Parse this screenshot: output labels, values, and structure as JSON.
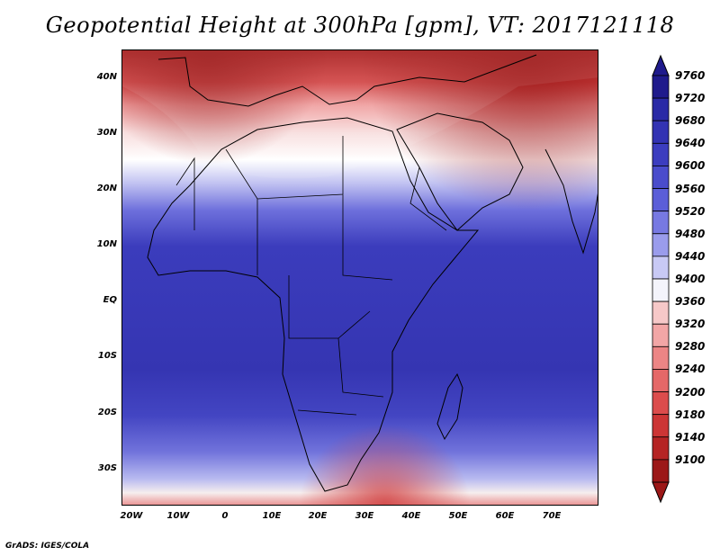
{
  "title": "Geopotential Height at 300hPa [gpm], VT: 2017121118",
  "y_axis_labels": [
    "40N",
    "30N",
    "20N",
    "10N",
    "EQ",
    "10S",
    "20S",
    "30S"
  ],
  "x_axis_labels": [
    "20W",
    "10W",
    "0",
    "10E",
    "20E",
    "30E",
    "40E",
    "50E",
    "60E",
    "70E"
  ],
  "colorbar": {
    "levels": [
      "9760",
      "9720",
      "9680",
      "9640",
      "9600",
      "9560",
      "9520",
      "9480",
      "9440",
      "9400",
      "9360",
      "9320",
      "9280",
      "9240",
      "9200",
      "9180",
      "9140",
      "9100"
    ],
    "colors": [
      "#1f1a8c",
      "#2a2aa6",
      "#3333b3",
      "#3c3dbf",
      "#4a4ccc",
      "#5b5ed8",
      "#7779e2",
      "#9a9cec",
      "#c8c9f5",
      "#f4f4fb",
      "#f6c8c8",
      "#f2a6a6",
      "#ec8585",
      "#e56868",
      "#dc4c4c",
      "#cc3535",
      "#b52424",
      "#9c1818"
    ]
  },
  "footer": "GrADS: IGES/COLA"
}
